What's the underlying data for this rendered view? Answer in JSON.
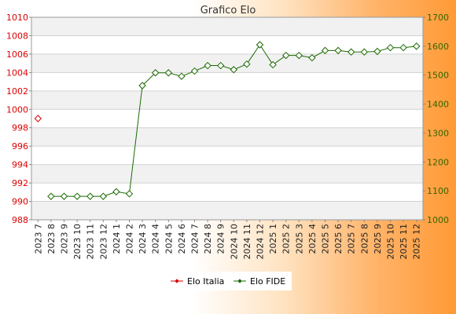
{
  "chart_data": {
    "type": "line",
    "title": "Grafico Elo",
    "categories": [
      "2023 7",
      "2023 8",
      "2023 9",
      "2023 10",
      "2023 11",
      "2023 12",
      "2024 1",
      "2024 2",
      "2024 3",
      "2024 4",
      "2024 5",
      "2024 6",
      "2024 7",
      "2024 8",
      "2024 9",
      "2024 10",
      "2024 11",
      "2024 12",
      "2025 1",
      "2025 2",
      "2025 3",
      "2025 4",
      "2025 5",
      "2025 6",
      "2025 7",
      "2025 8",
      "2025 9",
      "2025 10",
      "2025 11",
      "2025 12"
    ],
    "y_left": {
      "min": 988,
      "max": 1010,
      "ticks": [
        988,
        990,
        992,
        994,
        996,
        998,
        1000,
        1002,
        1004,
        1006,
        1008,
        1010
      ],
      "color": "#dd0000"
    },
    "y_right": {
      "min": 1000,
      "max": 1700,
      "ticks": [
        1000,
        1100,
        1200,
        1300,
        1400,
        1500,
        1600,
        1700
      ],
      "color": "#336600"
    },
    "grid": true,
    "legend_position": "bottom",
    "series": [
      {
        "name": "Elo Italia",
        "axis": "left",
        "color": "#dd0000",
        "values": [
          999,
          null,
          null,
          null,
          null,
          null,
          null,
          null,
          null,
          null,
          null,
          null,
          null,
          null,
          null,
          null,
          null,
          null,
          null,
          null,
          null,
          null,
          null,
          null,
          null,
          null,
          null,
          null,
          null,
          null
        ]
      },
      {
        "name": "Elo FIDE",
        "axis": "right",
        "color": "#1a6a00",
        "values": [
          null,
          1081,
          1081,
          1081,
          1081,
          1081,
          1097,
          1090,
          1464,
          1508,
          1508,
          1496,
          1514,
          1533,
          1533,
          1519,
          1538,
          1605,
          1536,
          1568,
          1568,
          1560,
          1585,
          1585,
          1580,
          1580,
          1582,
          1595,
          1595,
          1600
        ]
      }
    ]
  }
}
